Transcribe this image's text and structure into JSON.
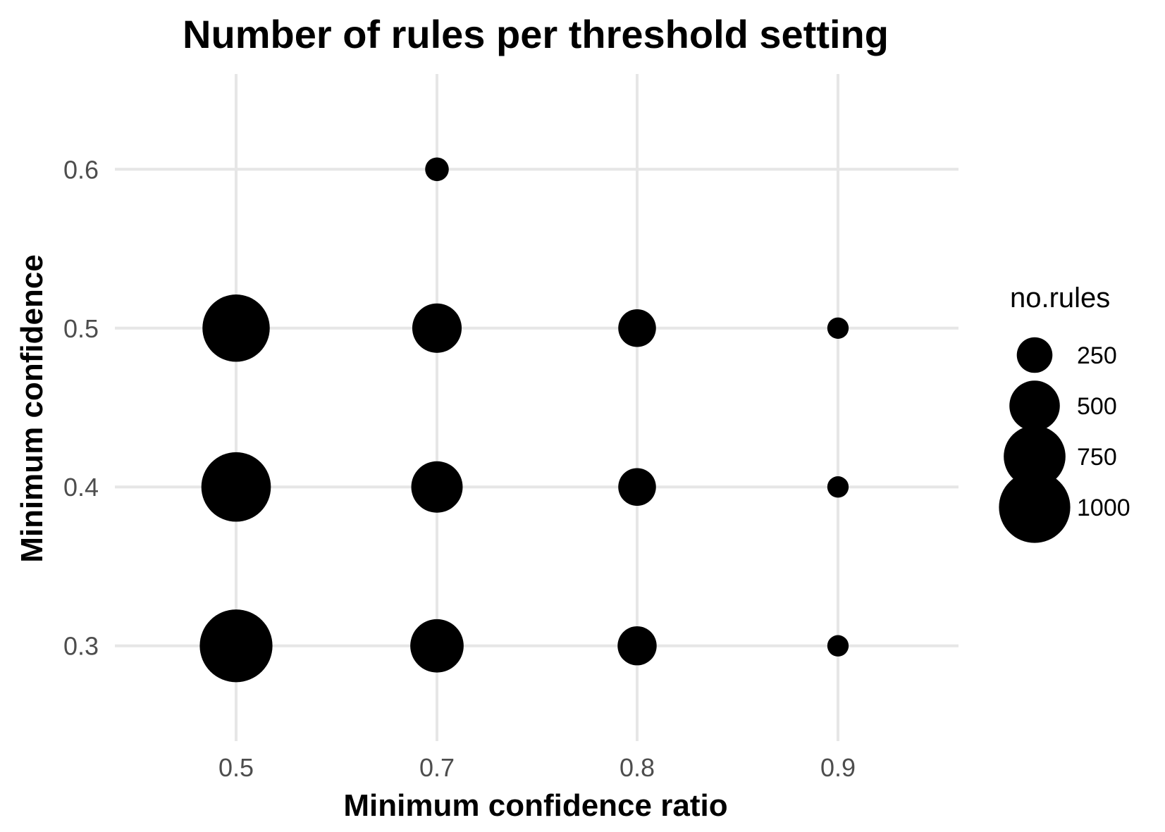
{
  "chart_data": {
    "type": "scatter",
    "title": "Number of rules per threshold setting",
    "xlabel": "Minimum confidence ratio",
    "ylabel": "Minimum confidence",
    "x_categories": [
      "0.5",
      "0.7",
      "0.8",
      "0.9"
    ],
    "y_ticks": [
      "0.3",
      "0.4",
      "0.5",
      "0.6"
    ],
    "ylim": [
      0.24,
      0.66
    ],
    "grid": true,
    "size_variable": "no.rules",
    "points": [
      {
        "x": "0.5",
        "y": 0.3,
        "no_rules": 1040
      },
      {
        "x": "0.5",
        "y": 0.4,
        "no_rules": 950
      },
      {
        "x": "0.5",
        "y": 0.5,
        "no_rules": 890
      },
      {
        "x": "0.7",
        "y": 0.3,
        "no_rules": 560
      },
      {
        "x": "0.7",
        "y": 0.4,
        "no_rules": 520
      },
      {
        "x": "0.7",
        "y": 0.5,
        "no_rules": 480
      },
      {
        "x": "0.7",
        "y": 0.6,
        "no_rules": 110
      },
      {
        "x": "0.8",
        "y": 0.3,
        "no_rules": 300
      },
      {
        "x": "0.8",
        "y": 0.4,
        "no_rules": 280
      },
      {
        "x": "0.8",
        "y": 0.5,
        "no_rules": 280
      },
      {
        "x": "0.9",
        "y": 0.3,
        "no_rules": 90
      },
      {
        "x": "0.9",
        "y": 0.4,
        "no_rules": 90
      },
      {
        "x": "0.9",
        "y": 0.5,
        "no_rules": 90
      }
    ],
    "legend": {
      "title": "no.rules",
      "placement": "right",
      "entries": [
        {
          "label": "250",
          "value": 250
        },
        {
          "label": "500",
          "value": 500
        },
        {
          "label": "750",
          "value": 750
        },
        {
          "label": "1000",
          "value": 1000
        }
      ]
    },
    "colors": {
      "point": "#000000",
      "grid": "#e6e6e6",
      "tick_text": "#4d4d4d",
      "background": "#ffffff"
    }
  }
}
